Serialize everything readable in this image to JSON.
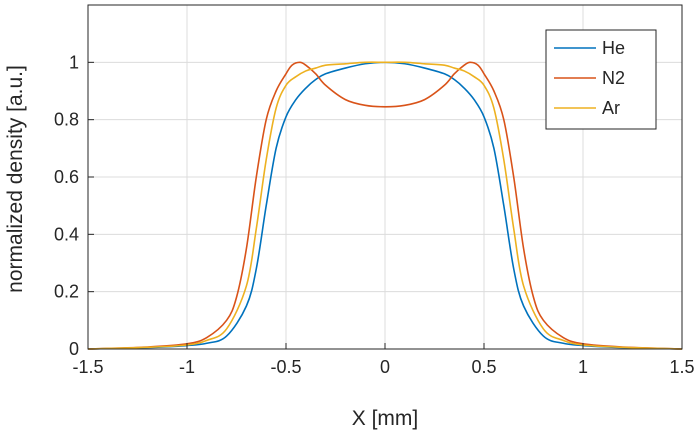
{
  "chart_data": {
    "type": "line",
    "title": "",
    "xlabel": "X [mm]",
    "ylabel": "normalized density [a.u.]",
    "xlim": [
      -1.5,
      1.5
    ],
    "ylim": [
      0,
      1.2
    ],
    "xticks": [
      -1.5,
      -1,
      -0.5,
      0,
      0.5,
      1,
      1.5
    ],
    "xtick_labels": [
      "-1.5",
      "-1",
      "-0.5",
      "0",
      "0.5",
      "1",
      "1.5"
    ],
    "yticks": [
      0,
      0.2,
      0.4,
      0.6,
      0.8,
      1
    ],
    "ytick_labels": [
      "0",
      "0.2",
      "0.4",
      "0.6",
      "0.8",
      "1"
    ],
    "grid": true,
    "legend_position": "top-right",
    "series": [
      {
        "name": "He",
        "color": "#0072BD",
        "x": [
          -1.5,
          -1.2,
          -1.0,
          -0.9,
          -0.8,
          -0.7,
          -0.65,
          -0.6,
          -0.55,
          -0.5,
          -0.45,
          -0.4,
          -0.35,
          -0.3,
          -0.2,
          -0.1,
          0,
          0.1,
          0.2,
          0.3,
          0.35,
          0.4,
          0.45,
          0.5,
          0.55,
          0.6,
          0.65,
          0.7,
          0.8,
          0.9,
          1.0,
          1.2,
          1.5
        ],
        "y": [
          0.0,
          0.005,
          0.012,
          0.02,
          0.045,
          0.15,
          0.28,
          0.5,
          0.7,
          0.81,
          0.87,
          0.91,
          0.94,
          0.96,
          0.98,
          0.995,
          1.0,
          0.995,
          0.98,
          0.96,
          0.94,
          0.91,
          0.87,
          0.81,
          0.7,
          0.5,
          0.28,
          0.15,
          0.045,
          0.02,
          0.012,
          0.005,
          0.0
        ]
      },
      {
        "name": "N2",
        "color": "#D95319",
        "x": [
          -1.5,
          -1.2,
          -1.0,
          -0.9,
          -0.8,
          -0.75,
          -0.7,
          -0.65,
          -0.6,
          -0.55,
          -0.5,
          -0.47,
          -0.43,
          -0.4,
          -0.35,
          -0.3,
          -0.2,
          -0.1,
          0,
          0.1,
          0.2,
          0.3,
          0.35,
          0.4,
          0.43,
          0.47,
          0.5,
          0.55,
          0.6,
          0.65,
          0.7,
          0.75,
          0.8,
          0.9,
          1.0,
          1.2,
          1.5
        ],
        "y": [
          0.0,
          0.007,
          0.018,
          0.04,
          0.1,
          0.18,
          0.35,
          0.6,
          0.8,
          0.9,
          0.96,
          0.99,
          1.0,
          0.99,
          0.96,
          0.92,
          0.87,
          0.85,
          0.845,
          0.85,
          0.87,
          0.92,
          0.96,
          0.99,
          1.0,
          0.99,
          0.96,
          0.9,
          0.8,
          0.6,
          0.35,
          0.18,
          0.1,
          0.04,
          0.018,
          0.007,
          0.0
        ]
      },
      {
        "name": "Ar",
        "color": "#EDB120",
        "x": [
          -1.5,
          -1.2,
          -1.0,
          -0.9,
          -0.8,
          -0.7,
          -0.65,
          -0.6,
          -0.55,
          -0.5,
          -0.45,
          -0.4,
          -0.35,
          -0.3,
          -0.2,
          -0.1,
          0,
          0.1,
          0.2,
          0.3,
          0.35,
          0.4,
          0.45,
          0.5,
          0.55,
          0.6,
          0.65,
          0.7,
          0.8,
          0.9,
          1.0,
          1.2,
          1.5
        ],
        "y": [
          0.0,
          0.006,
          0.014,
          0.03,
          0.07,
          0.22,
          0.42,
          0.66,
          0.84,
          0.92,
          0.95,
          0.97,
          0.98,
          0.99,
          0.995,
          1.0,
          1.0,
          1.0,
          0.995,
          0.99,
          0.98,
          0.97,
          0.95,
          0.92,
          0.84,
          0.66,
          0.42,
          0.22,
          0.07,
          0.03,
          0.014,
          0.006,
          0.0
        ]
      }
    ]
  }
}
